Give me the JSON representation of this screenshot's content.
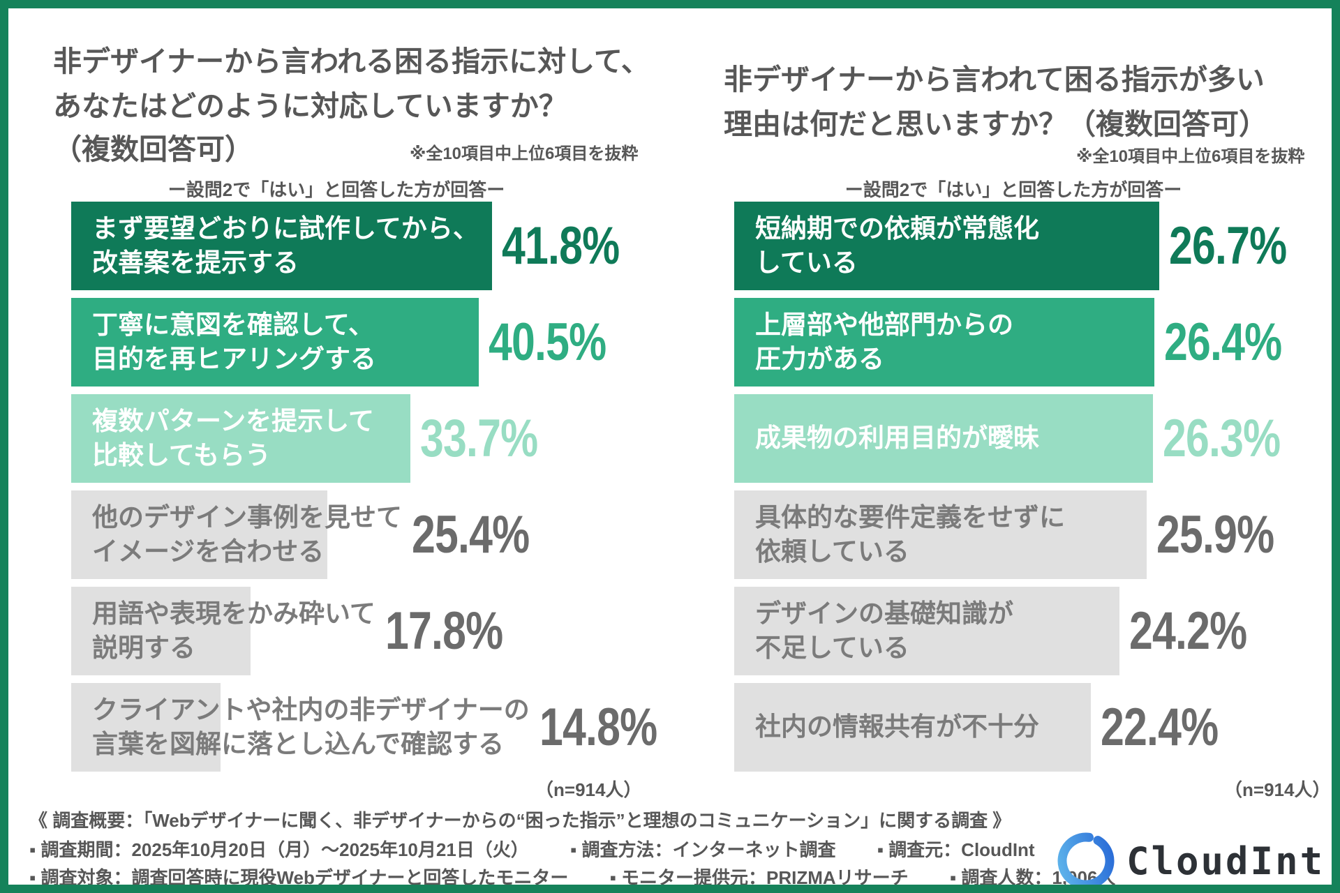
{
  "colors": {
    "dark": "#0f7a58",
    "mid": "#2fad82",
    "light": "#98ddc3",
    "gray": "#e0e0e0",
    "gray_text": "#6b6b6b",
    "label_gray": "#7b7b7b",
    "title_text": "#575757",
    "border_green": "#15825a",
    "logo_blue_light": "#62b9ec",
    "logo_blue_dark": "#2566d6",
    "logo_text": "#2d3136"
  },
  "chart_data": [
    {
      "type": "bar",
      "orientation": "horizontal",
      "title_line1": "非デザイナーから言われる困る指示に対して、",
      "title_line2": "あなたはどのように対応していますか？",
      "title_line3": "（複数回答可）",
      "note": "※全10項目中上位6項目を抜粋",
      "subnote": "ー設問2で「はい」と回答した方が回答ー",
      "sample": "（n=914人）",
      "value_unit": "%",
      "xlim": [
        0,
        45
      ],
      "categories": [
        "まず要望どおりに試作してから、改善案を提示する",
        "丁寧に意図を確認して、目的を再ヒアリングする",
        "複数パターンを提示して比較してもらう",
        "他のデザイン事例を見せてイメージを合わせる",
        "用語や表現をかみ砕いて説明する",
        "クライアントや社内の非デザイナーの言葉を図解に落とし込んで確認する"
      ],
      "values": [
        41.8,
        40.5,
        33.7,
        25.4,
        17.8,
        14.8
      ],
      "bars": [
        {
          "label_lines": [
            "まず要望どおりに試作してから、",
            "改善案を提示する"
          ],
          "value": 41.8,
          "display": "41.8%",
          "tone": "dark"
        },
        {
          "label_lines": [
            "丁寧に意図を確認して、",
            "目的を再ヒアリングする"
          ],
          "value": 40.5,
          "display": "40.5%",
          "tone": "mid"
        },
        {
          "label_lines": [
            "複数パターンを提示して",
            "比較してもらう"
          ],
          "value": 33.7,
          "display": "33.7%",
          "tone": "light"
        },
        {
          "label_lines": [
            "他のデザイン事例を見せて",
            "イメージを合わせる"
          ],
          "value": 25.4,
          "display": "25.4%",
          "tone": "gray"
        },
        {
          "label_lines": [
            "用語や表現をかみ砕いて",
            "説明する"
          ],
          "value": 17.8,
          "display": "17.8%",
          "tone": "gray"
        },
        {
          "label_lines": [
            "クライアントや社内の非デザイナーの",
            "言葉を図解に落とし込んで確認する"
          ],
          "value": 14.8,
          "display": "14.8%",
          "tone": "gray"
        }
      ]
    },
    {
      "type": "bar",
      "orientation": "horizontal",
      "title_line1": "非デザイナーから言われて困る指示が多い",
      "title_line2": "理由は何だと思いますか？（複数回答可）",
      "title_line3": "",
      "note": "※全10項目中上位6項目を抜粋",
      "subnote": "ー設問2で「はい」と回答した方が回答ー",
      "sample": "（n=914人）",
      "value_unit": "%",
      "xlim": [
        0,
        30
      ],
      "categories": [
        "短納期での依頼が常態化している",
        "上層部や他部門からの圧力がある",
        "成果物の利用目的が曖昧",
        "具体的な要件定義をせずに依頼している",
        "デザインの基礎知識が不足している",
        "社内の情報共有が不十分"
      ],
      "values": [
        26.7,
        26.4,
        26.3,
        25.9,
        24.2,
        22.4
      ],
      "bars": [
        {
          "label_lines": [
            "短納期での依頼が常態化",
            "している"
          ],
          "value": 26.7,
          "display": "26.7%",
          "tone": "dark"
        },
        {
          "label_lines": [
            "上層部や他部門からの",
            "圧力がある"
          ],
          "value": 26.4,
          "display": "26.4%",
          "tone": "mid"
        },
        {
          "label_lines": [
            "成果物の利用目的が曖昧"
          ],
          "value": 26.3,
          "display": "26.3%",
          "tone": "light"
        },
        {
          "label_lines": [
            "具体的な要件定義をせずに",
            "依頼している"
          ],
          "value": 25.9,
          "display": "25.9%",
          "tone": "gray"
        },
        {
          "label_lines": [
            "デザインの基礎知識が",
            "不足している"
          ],
          "value": 24.2,
          "display": "24.2%",
          "tone": "gray"
        },
        {
          "label_lines": [
            "社内の情報共有が不十分"
          ],
          "value": 22.4,
          "display": "22.4%",
          "tone": "gray"
        }
      ]
    }
  ],
  "footer": {
    "line1": "《 調査概要：「Webデザイナーに聞く、非デザイナーからの“困った指示”と理想のコミュニケーション」に関する調査 》",
    "line2_items": [
      "▪ 調査期間：2025年10月20日（月）～2025年10月21日（火）",
      "▪ 調査方法：インターネット調査",
      "▪ 調査元：CloudInt"
    ],
    "line3_items": [
      "▪ 調査対象：調査回答時に現役Webデザイナーと回答したモニター",
      "▪ モニター提供元：PRIZMAリサーチ",
      "▪ 調査人数：1,006人"
    ]
  },
  "logo": {
    "text": "CloudInt"
  }
}
